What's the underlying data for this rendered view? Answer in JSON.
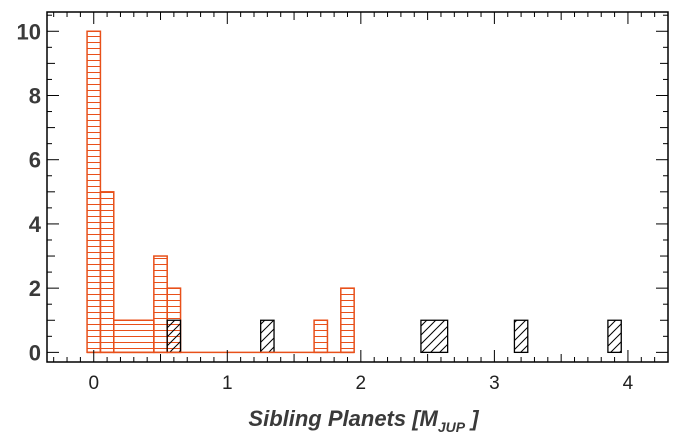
{
  "chart_data": {
    "type": "bar",
    "title": "",
    "xlabel": {
      "main": "Sibling Planets [M",
      "subscript": "JUP",
      "close": " ]"
    },
    "ylabel": "",
    "xlim": [
      -0.35,
      4.3
    ],
    "ylim": [
      -0.3,
      10.6
    ],
    "xticks": [
      0,
      1,
      2,
      3,
      4
    ],
    "xtick_labels": [
      "0",
      "1",
      "2",
      "3",
      "4"
    ],
    "yticks": [
      0,
      2,
      4,
      6,
      8,
      10
    ],
    "ytick_labels": [
      "0",
      "2",
      "4",
      "6",
      "8",
      "10"
    ],
    "grid": false,
    "series": [
      {
        "color": "#e8501a",
        "hatch": "horizontal",
        "bins": [
          {
            "x0": -0.05,
            "x1": 0.05,
            "value": 10
          },
          {
            "x0": 0.05,
            "x1": 0.15,
            "value": 5
          },
          {
            "x0": 0.15,
            "x1": 0.45,
            "value": 1
          },
          {
            "x0": 0.45,
            "x1": 0.55,
            "value": 3
          },
          {
            "x0": 0.55,
            "x1": 0.65,
            "value": 2
          },
          {
            "x0": 1.65,
            "x1": 1.75,
            "value": 1
          },
          {
            "x0": 1.85,
            "x1": 1.95,
            "value": 2
          }
        ]
      },
      {
        "color": "#000000",
        "hatch": "diagonal",
        "bins": [
          {
            "x0": 0.55,
            "x1": 0.65,
            "value": 1
          },
          {
            "x0": 1.25,
            "x1": 1.35,
            "value": 1
          },
          {
            "x0": 2.45,
            "x1": 2.65,
            "value": 1
          },
          {
            "x0": 3.15,
            "x1": 3.25,
            "value": 1
          },
          {
            "x0": 3.85,
            "x1": 3.95,
            "value": 1
          }
        ]
      }
    ]
  }
}
